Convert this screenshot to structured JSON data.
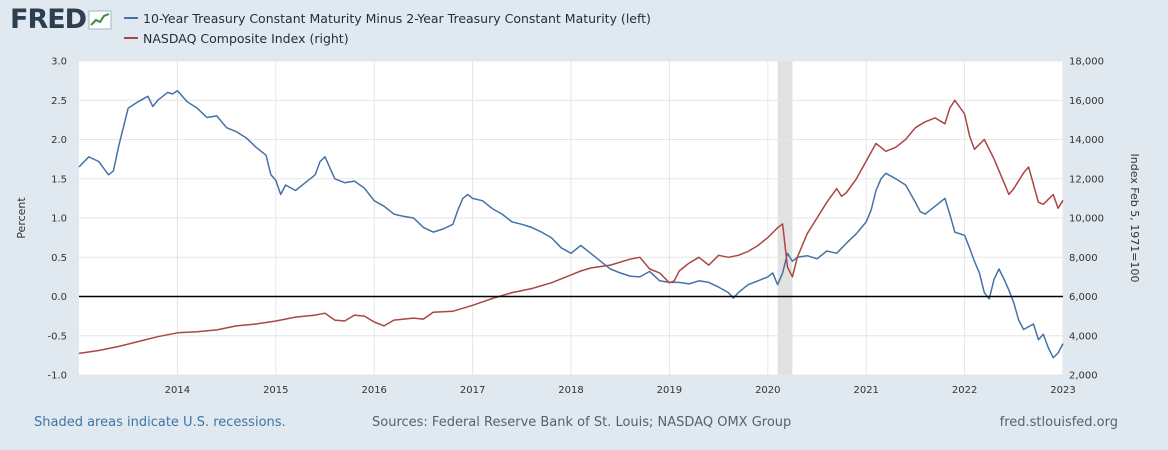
{
  "header": {
    "logo_text": "FRED",
    "logo_icon": "line-graph-icon"
  },
  "chart_data": {
    "type": "line",
    "title": "",
    "series": [
      {
        "name": "10-Year Treasury Constant Maturity Minus 2-Year Treasury Constant Maturity (left)",
        "axis": "left",
        "color": "#4572a7",
        "points": [
          [
            2013.0,
            1.65
          ],
          [
            2013.1,
            1.78
          ],
          [
            2013.2,
            1.72
          ],
          [
            2013.3,
            1.55
          ],
          [
            2013.35,
            1.6
          ],
          [
            2013.4,
            1.9
          ],
          [
            2013.45,
            2.15
          ],
          [
            2013.5,
            2.4
          ],
          [
            2013.6,
            2.48
          ],
          [
            2013.7,
            2.55
          ],
          [
            2013.75,
            2.42
          ],
          [
            2013.8,
            2.5
          ],
          [
            2013.9,
            2.6
          ],
          [
            2013.95,
            2.58
          ],
          [
            2014.0,
            2.62
          ],
          [
            2014.1,
            2.48
          ],
          [
            2014.2,
            2.4
          ],
          [
            2014.3,
            2.28
          ],
          [
            2014.4,
            2.3
          ],
          [
            2014.5,
            2.15
          ],
          [
            2014.6,
            2.1
          ],
          [
            2014.7,
            2.02
          ],
          [
            2014.8,
            1.9
          ],
          [
            2014.9,
            1.8
          ],
          [
            2014.95,
            1.55
          ],
          [
            2015.0,
            1.48
          ],
          [
            2015.05,
            1.3
          ],
          [
            2015.1,
            1.42
          ],
          [
            2015.2,
            1.35
          ],
          [
            2015.3,
            1.45
          ],
          [
            2015.4,
            1.55
          ],
          [
            2015.45,
            1.72
          ],
          [
            2015.5,
            1.78
          ],
          [
            2015.6,
            1.5
          ],
          [
            2015.7,
            1.45
          ],
          [
            2015.8,
            1.47
          ],
          [
            2015.9,
            1.38
          ],
          [
            2016.0,
            1.22
          ],
          [
            2016.1,
            1.15
          ],
          [
            2016.2,
            1.05
          ],
          [
            2016.3,
            1.02
          ],
          [
            2016.4,
            1.0
          ],
          [
            2016.5,
            0.88
          ],
          [
            2016.6,
            0.82
          ],
          [
            2016.7,
            0.86
          ],
          [
            2016.8,
            0.92
          ],
          [
            2016.85,
            1.1
          ],
          [
            2016.9,
            1.25
          ],
          [
            2016.95,
            1.3
          ],
          [
            2017.0,
            1.25
          ],
          [
            2017.1,
            1.22
          ],
          [
            2017.2,
            1.12
          ],
          [
            2017.3,
            1.05
          ],
          [
            2017.4,
            0.95
          ],
          [
            2017.5,
            0.92
          ],
          [
            2017.6,
            0.88
          ],
          [
            2017.7,
            0.82
          ],
          [
            2017.8,
            0.75
          ],
          [
            2017.9,
            0.62
          ],
          [
            2018.0,
            0.55
          ],
          [
            2018.1,
            0.65
          ],
          [
            2018.2,
            0.55
          ],
          [
            2018.3,
            0.45
          ],
          [
            2018.4,
            0.35
          ],
          [
            2018.5,
            0.3
          ],
          [
            2018.6,
            0.26
          ],
          [
            2018.7,
            0.25
          ],
          [
            2018.8,
            0.32
          ],
          [
            2018.9,
            0.2
          ],
          [
            2019.0,
            0.18
          ],
          [
            2019.1,
            0.18
          ],
          [
            2019.2,
            0.16
          ],
          [
            2019.3,
            0.2
          ],
          [
            2019.4,
            0.18
          ],
          [
            2019.5,
            0.12
          ],
          [
            2019.6,
            0.05
          ],
          [
            2019.65,
            -0.02
          ],
          [
            2019.7,
            0.05
          ],
          [
            2019.8,
            0.15
          ],
          [
            2019.9,
            0.2
          ],
          [
            2020.0,
            0.25
          ],
          [
            2020.05,
            0.3
          ],
          [
            2020.1,
            0.15
          ],
          [
            2020.15,
            0.3
          ],
          [
            2020.2,
            0.55
          ],
          [
            2020.25,
            0.45
          ],
          [
            2020.3,
            0.5
          ],
          [
            2020.4,
            0.52
          ],
          [
            2020.5,
            0.48
          ],
          [
            2020.6,
            0.58
          ],
          [
            2020.7,
            0.55
          ],
          [
            2020.8,
            0.68
          ],
          [
            2020.9,
            0.8
          ],
          [
            2021.0,
            0.95
          ],
          [
            2021.05,
            1.1
          ],
          [
            2021.1,
            1.35
          ],
          [
            2021.15,
            1.5
          ],
          [
            2021.2,
            1.57
          ],
          [
            2021.3,
            1.5
          ],
          [
            2021.4,
            1.42
          ],
          [
            2021.5,
            1.2
          ],
          [
            2021.55,
            1.08
          ],
          [
            2021.6,
            1.05
          ],
          [
            2021.7,
            1.15
          ],
          [
            2021.8,
            1.25
          ],
          [
            2021.85,
            1.05
          ],
          [
            2021.9,
            0.82
          ],
          [
            2022.0,
            0.78
          ],
          [
            2022.05,
            0.62
          ],
          [
            2022.1,
            0.45
          ],
          [
            2022.15,
            0.3
          ],
          [
            2022.2,
            0.05
          ],
          [
            2022.25,
            -0.03
          ],
          [
            2022.3,
            0.22
          ],
          [
            2022.35,
            0.35
          ],
          [
            2022.4,
            0.22
          ],
          [
            2022.45,
            0.08
          ],
          [
            2022.5,
            -0.08
          ],
          [
            2022.55,
            -0.3
          ],
          [
            2022.6,
            -0.42
          ],
          [
            2022.7,
            -0.35
          ],
          [
            2022.75,
            -0.55
          ],
          [
            2022.8,
            -0.48
          ],
          [
            2022.85,
            -0.65
          ],
          [
            2022.9,
            -0.78
          ],
          [
            2022.95,
            -0.72
          ],
          [
            2023.0,
            -0.6
          ]
        ]
      },
      {
        "name": "NASDAQ Composite Index (right)",
        "axis": "right",
        "color": "#aa4643",
        "points": [
          [
            2013.0,
            3100
          ],
          [
            2013.2,
            3250
          ],
          [
            2013.4,
            3450
          ],
          [
            2013.6,
            3700
          ],
          [
            2013.8,
            3950
          ],
          [
            2014.0,
            4150
          ],
          [
            2014.2,
            4200
          ],
          [
            2014.4,
            4300
          ],
          [
            2014.6,
            4500
          ],
          [
            2014.8,
            4600
          ],
          [
            2015.0,
            4750
          ],
          [
            2015.2,
            4950
          ],
          [
            2015.4,
            5050
          ],
          [
            2015.5,
            5150
          ],
          [
            2015.6,
            4800
          ],
          [
            2015.7,
            4750
          ],
          [
            2015.8,
            5050
          ],
          [
            2015.9,
            5000
          ],
          [
            2016.0,
            4700
          ],
          [
            2016.1,
            4500
          ],
          [
            2016.2,
            4800
          ],
          [
            2016.4,
            4900
          ],
          [
            2016.5,
            4850
          ],
          [
            2016.6,
            5200
          ],
          [
            2016.8,
            5250
          ],
          [
            2016.9,
            5400
          ],
          [
            2017.0,
            5550
          ],
          [
            2017.2,
            5900
          ],
          [
            2017.4,
            6200
          ],
          [
            2017.6,
            6400
          ],
          [
            2017.8,
            6700
          ],
          [
            2018.0,
            7100
          ],
          [
            2018.1,
            7300
          ],
          [
            2018.2,
            7450
          ],
          [
            2018.4,
            7600
          ],
          [
            2018.6,
            7900
          ],
          [
            2018.7,
            8000
          ],
          [
            2018.8,
            7400
          ],
          [
            2018.9,
            7200
          ],
          [
            2019.0,
            6700
          ],
          [
            2019.05,
            6800
          ],
          [
            2019.1,
            7300
          ],
          [
            2019.2,
            7700
          ],
          [
            2019.3,
            8000
          ],
          [
            2019.4,
            7600
          ],
          [
            2019.5,
            8100
          ],
          [
            2019.6,
            8000
          ],
          [
            2019.7,
            8100
          ],
          [
            2019.8,
            8300
          ],
          [
            2019.9,
            8600
          ],
          [
            2020.0,
            9000
          ],
          [
            2020.1,
            9500
          ],
          [
            2020.15,
            9700
          ],
          [
            2020.2,
            7500
          ],
          [
            2020.25,
            7000
          ],
          [
            2020.3,
            8000
          ],
          [
            2020.4,
            9200
          ],
          [
            2020.5,
            10000
          ],
          [
            2020.6,
            10800
          ],
          [
            2020.7,
            11500
          ],
          [
            2020.75,
            11100
          ],
          [
            2020.8,
            11300
          ],
          [
            2020.9,
            12000
          ],
          [
            2021.0,
            12900
          ],
          [
            2021.1,
            13800
          ],
          [
            2021.2,
            13400
          ],
          [
            2021.3,
            13600
          ],
          [
            2021.4,
            14000
          ],
          [
            2021.5,
            14600
          ],
          [
            2021.6,
            14900
          ],
          [
            2021.7,
            15100
          ],
          [
            2021.8,
            14800
          ],
          [
            2021.85,
            15600
          ],
          [
            2021.9,
            16000
          ],
          [
            2022.0,
            15300
          ],
          [
            2022.05,
            14200
          ],
          [
            2022.1,
            13500
          ],
          [
            2022.2,
            14000
          ],
          [
            2022.3,
            13000
          ],
          [
            2022.4,
            11800
          ],
          [
            2022.45,
            11200
          ],
          [
            2022.5,
            11500
          ],
          [
            2022.6,
            12300
          ],
          [
            2022.65,
            12600
          ],
          [
            2022.7,
            11700
          ],
          [
            2022.75,
            10800
          ],
          [
            2022.8,
            10700
          ],
          [
            2022.9,
            11200
          ],
          [
            2022.95,
            10500
          ],
          [
            2023.0,
            10900
          ]
        ]
      }
    ],
    "x_ticks": [
      "2014",
      "2015",
      "2016",
      "2017",
      "2018",
      "2019",
      "2020",
      "2021",
      "2022",
      "2023"
    ],
    "x_tick_values": [
      2014,
      2015,
      2016,
      2017,
      2018,
      2019,
      2020,
      2021,
      2022,
      2023
    ],
    "xlim": [
      2013.0,
      2023.0
    ],
    "y_left": {
      "label": "Percent",
      "ticks": [
        "3.0",
        "2.5",
        "2.0",
        "1.5",
        "1.0",
        "0.5",
        "0.0",
        "-0.5",
        "-1.0"
      ],
      "tick_values": [
        3.0,
        2.5,
        2.0,
        1.5,
        1.0,
        0.5,
        0.0,
        -0.5,
        -1.0
      ],
      "lim": [
        -1.0,
        3.0
      ]
    },
    "y_right": {
      "label": "Index Feb 5, 1971=100",
      "ticks": [
        "18,000",
        "16,000",
        "14,000",
        "12,000",
        "10,000",
        "8,000",
        "6,000",
        "4,000",
        "2,000"
      ],
      "tick_values": [
        18000,
        16000,
        14000,
        12000,
        10000,
        8000,
        6000,
        4000,
        2000
      ],
      "lim": [
        2000,
        18000
      ]
    },
    "recessions": [
      [
        2020.1,
        2020.25
      ]
    ],
    "reference_line_y": 0.0,
    "grid": true,
    "legend_position": "top-left"
  },
  "footer": {
    "recession_note": "Shaded areas indicate U.S. recessions.",
    "sources": "Sources: Federal Reserve Bank of St. Louis; NASDAQ OMX Group",
    "site": "fred.stlouisfed.org"
  },
  "colors": {
    "background": "#e1e9f0",
    "plot_background": "#ffffff",
    "series_1": "#4572a7",
    "series_2": "#aa4643",
    "recession": "#e1e1e1",
    "link": "#3d74a8"
  }
}
